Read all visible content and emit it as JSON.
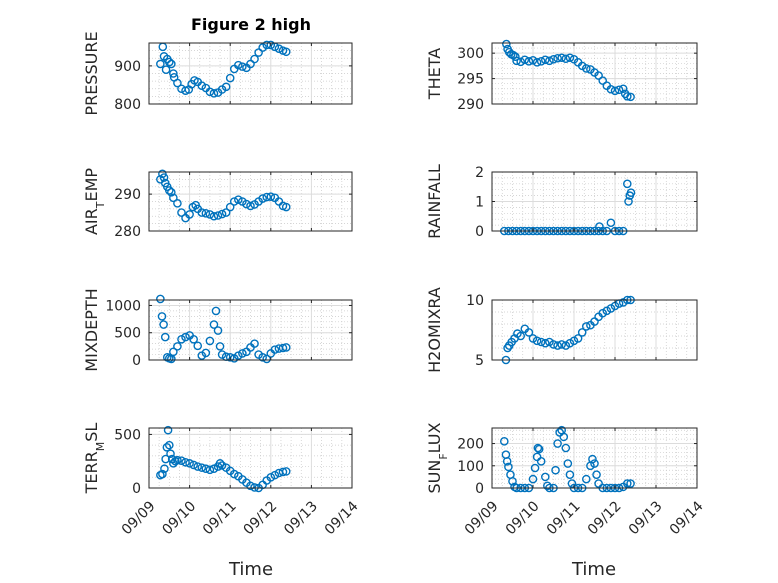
{
  "figure": {
    "title": "Figure 2 high",
    "x_label": "Time",
    "x_ticks": [
      "09/09",
      "09/10",
      "09/11",
      "09/12",
      "09/13",
      "09/14"
    ]
  },
  "chart_data": [
    {
      "type": "scatter",
      "ylabel": "PRESSURE",
      "ylabel_main": "PRESSURE",
      "ylabel_sub": "",
      "ylabel_tail": "",
      "ylim": [
        800,
        960
      ],
      "yticks": [
        800,
        900
      ],
      "xlim": [
        "09/09",
        "09/14"
      ],
      "marker": "o",
      "color": "#0072bd",
      "grid": true,
      "minor_grid": true,
      "points": [
        [
          0.28,
          905
        ],
        [
          0.34,
          950
        ],
        [
          0.37,
          925
        ],
        [
          0.42,
          890
        ],
        [
          0.45,
          918
        ],
        [
          0.5,
          910
        ],
        [
          0.55,
          905
        ],
        [
          0.6,
          880
        ],
        [
          0.62,
          870
        ],
        [
          0.7,
          855
        ],
        [
          0.8,
          840
        ],
        [
          0.9,
          835
        ],
        [
          0.98,
          838
        ],
        [
          1.05,
          852
        ],
        [
          1.12,
          862
        ],
        [
          1.2,
          858
        ],
        [
          1.3,
          848
        ],
        [
          1.4,
          842
        ],
        [
          1.5,
          832
        ],
        [
          1.6,
          828
        ],
        [
          1.7,
          830
        ],
        [
          1.8,
          838
        ],
        [
          1.9,
          845
        ],
        [
          2.0,
          868
        ],
        [
          2.1,
          892
        ],
        [
          2.2,
          902
        ],
        [
          2.3,
          898
        ],
        [
          2.4,
          895
        ],
        [
          2.5,
          905
        ],
        [
          2.6,
          918
        ],
        [
          2.7,
          935
        ],
        [
          2.8,
          948
        ],
        [
          2.9,
          955
        ],
        [
          3.0,
          955
        ],
        [
          3.1,
          950
        ],
        [
          3.2,
          945
        ],
        [
          3.3,
          940
        ],
        [
          3.38,
          937
        ]
      ]
    },
    {
      "type": "scatter",
      "ylabel": "THETA",
      "ylabel_main": "THETA",
      "ylabel_sub": "",
      "ylabel_tail": "",
      "ylim": [
        290,
        302
      ],
      "yticks": [
        290,
        295,
        300
      ],
      "xlim": [
        "09/09",
        "09/14"
      ],
      "marker": "o",
      "color": "#0072bd",
      "grid": true,
      "minor_grid": true,
      "points": [
        [
          0.35,
          301.8
        ],
        [
          0.38,
          300.8
        ],
        [
          0.42,
          300.2
        ],
        [
          0.47,
          299.8
        ],
        [
          0.52,
          299.6
        ],
        [
          0.57,
          299.3
        ],
        [
          0.6,
          298.5
        ],
        [
          0.7,
          298.3
        ],
        [
          0.8,
          298.7
        ],
        [
          0.9,
          298.4
        ],
        [
          1.0,
          298.6
        ],
        [
          1.1,
          298.2
        ],
        [
          1.2,
          298.4
        ],
        [
          1.3,
          298.7
        ],
        [
          1.4,
          298.5
        ],
        [
          1.5,
          298.8
        ],
        [
          1.6,
          299.0
        ],
        [
          1.7,
          299.1
        ],
        [
          1.8,
          298.9
        ],
        [
          1.9,
          299.1
        ],
        [
          2.0,
          298.8
        ],
        [
          2.1,
          298.2
        ],
        [
          2.2,
          297.5
        ],
        [
          2.3,
          297.0
        ],
        [
          2.4,
          296.8
        ],
        [
          2.5,
          296.2
        ],
        [
          2.6,
          295.6
        ],
        [
          2.7,
          294.6
        ],
        [
          2.8,
          293.6
        ],
        [
          2.9,
          292.9
        ],
        [
          3.0,
          292.6
        ],
        [
          3.1,
          292.8
        ],
        [
          3.2,
          293.0
        ],
        [
          3.25,
          292.0
        ],
        [
          3.3,
          291.5
        ],
        [
          3.38,
          291.4
        ]
      ]
    },
    {
      "type": "scatter",
      "ylabel": "AIR_TEMP",
      "ylabel_main": "AIR",
      "ylabel_sub": "T",
      "ylabel_tail": "EMP",
      "ylim": [
        280,
        296
      ],
      "yticks": [
        280,
        290
      ],
      "xlim": [
        "09/09",
        "09/14"
      ],
      "marker": "o",
      "color": "#0072bd",
      "grid": true,
      "minor_grid": true,
      "points": [
        [
          0.28,
          294.0
        ],
        [
          0.33,
          295.5
        ],
        [
          0.37,
          294.5
        ],
        [
          0.4,
          293.0
        ],
        [
          0.45,
          292.0
        ],
        [
          0.5,
          291.0
        ],
        [
          0.55,
          290.5
        ],
        [
          0.6,
          289.0
        ],
        [
          0.7,
          287.5
        ],
        [
          0.8,
          285.0
        ],
        [
          0.9,
          283.5
        ],
        [
          1.0,
          284.5
        ],
        [
          1.08,
          286.5
        ],
        [
          1.15,
          287.0
        ],
        [
          1.2,
          286.0
        ],
        [
          1.3,
          285.0
        ],
        [
          1.4,
          284.8
        ],
        [
          1.5,
          284.5
        ],
        [
          1.6,
          284.0
        ],
        [
          1.7,
          284.2
        ],
        [
          1.8,
          284.6
        ],
        [
          1.9,
          285.0
        ],
        [
          2.0,
          286.5
        ],
        [
          2.1,
          288.0
        ],
        [
          2.2,
          288.5
        ],
        [
          2.3,
          288.0
        ],
        [
          2.4,
          287.3
        ],
        [
          2.5,
          286.8
        ],
        [
          2.6,
          287.2
        ],
        [
          2.7,
          288.0
        ],
        [
          2.8,
          288.8
        ],
        [
          2.9,
          289.2
        ],
        [
          3.0,
          289.3
        ],
        [
          3.1,
          289.0
        ],
        [
          3.2,
          288.0
        ],
        [
          3.3,
          286.8
        ],
        [
          3.38,
          286.5
        ]
      ]
    },
    {
      "type": "scatter",
      "ylabel": "RAINFALL",
      "ylabel_main": "RAINFALL",
      "ylabel_sub": "",
      "ylabel_tail": "",
      "ylim": [
        0,
        2
      ],
      "yticks": [
        0,
        1,
        2
      ],
      "xlim": [
        "09/09",
        "09/14"
      ],
      "marker": "o",
      "color": "#0072bd",
      "grid": true,
      "minor_grid": true,
      "points": [
        [
          0.3,
          0
        ],
        [
          0.4,
          0
        ],
        [
          0.5,
          0
        ],
        [
          0.6,
          0
        ],
        [
          0.7,
          0
        ],
        [
          0.8,
          0
        ],
        [
          0.9,
          0
        ],
        [
          1.0,
          0
        ],
        [
          1.1,
          0
        ],
        [
          1.2,
          0
        ],
        [
          1.3,
          0
        ],
        [
          1.4,
          0
        ],
        [
          1.5,
          0
        ],
        [
          1.6,
          0
        ],
        [
          1.7,
          0
        ],
        [
          1.8,
          0
        ],
        [
          1.9,
          0
        ],
        [
          2.0,
          0
        ],
        [
          2.1,
          0
        ],
        [
          2.2,
          0
        ],
        [
          2.3,
          0
        ],
        [
          2.4,
          0
        ],
        [
          2.5,
          0
        ],
        [
          2.6,
          0
        ],
        [
          2.62,
          0.15
        ],
        [
          2.7,
          0
        ],
        [
          2.8,
          0
        ],
        [
          2.9,
          0.28
        ],
        [
          3.0,
          0
        ],
        [
          3.1,
          0
        ],
        [
          3.2,
          0
        ],
        [
          3.3,
          1.6
        ],
        [
          3.33,
          1.0
        ],
        [
          3.36,
          1.2
        ],
        [
          3.39,
          1.3
        ]
      ]
    },
    {
      "type": "scatter",
      "ylabel": "MIXDEPTH",
      "ylabel_main": "MIXDEPTH",
      "ylabel_sub": "",
      "ylabel_tail": "",
      "ylim": [
        0,
        1100
      ],
      "yticks": [
        0,
        500,
        1000
      ],
      "xlim": [
        "09/09",
        "09/14"
      ],
      "marker": "o",
      "color": "#0072bd",
      "grid": true,
      "minor_grid": true,
      "points": [
        [
          0.28,
          1120
        ],
        [
          0.32,
          800
        ],
        [
          0.36,
          650
        ],
        [
          0.4,
          420
        ],
        [
          0.45,
          50
        ],
        [
          0.5,
          30
        ],
        [
          0.55,
          20
        ],
        [
          0.6,
          150
        ],
        [
          0.7,
          250
        ],
        [
          0.8,
          380
        ],
        [
          0.9,
          420
        ],
        [
          1.0,
          450
        ],
        [
          1.1,
          380
        ],
        [
          1.2,
          260
        ],
        [
          1.3,
          80
        ],
        [
          1.4,
          130
        ],
        [
          1.5,
          350
        ],
        [
          1.6,
          650
        ],
        [
          1.65,
          900
        ],
        [
          1.7,
          540
        ],
        [
          1.75,
          250
        ],
        [
          1.8,
          100
        ],
        [
          1.9,
          60
        ],
        [
          2.0,
          50
        ],
        [
          2.1,
          30
        ],
        [
          2.2,
          80
        ],
        [
          2.3,
          120
        ],
        [
          2.4,
          150
        ],
        [
          2.5,
          230
        ],
        [
          2.6,
          300
        ],
        [
          2.7,
          100
        ],
        [
          2.8,
          50
        ],
        [
          2.9,
          20
        ],
        [
          3.0,
          120
        ],
        [
          3.1,
          190
        ],
        [
          3.2,
          210
        ],
        [
          3.3,
          220
        ],
        [
          3.38,
          230
        ]
      ]
    },
    {
      "type": "scatter",
      "ylabel": "H2OMIXRA",
      "ylabel_main": "H2OMIXRA",
      "ylabel_sub": "",
      "ylabel_tail": "",
      "ylim": [
        5,
        10
      ],
      "yticks": [
        5,
        10
      ],
      "xlim": [
        "09/09",
        "09/14"
      ],
      "marker": "o",
      "color": "#0072bd",
      "grid": true,
      "minor_grid": true,
      "points": [
        [
          0.34,
          5.0
        ],
        [
          0.38,
          6.0
        ],
        [
          0.42,
          6.2
        ],
        [
          0.48,
          6.5
        ],
        [
          0.55,
          6.8
        ],
        [
          0.62,
          7.2
        ],
        [
          0.7,
          7.0
        ],
        [
          0.8,
          7.6
        ],
        [
          0.9,
          7.3
        ],
        [
          1.0,
          6.8
        ],
        [
          1.1,
          6.6
        ],
        [
          1.2,
          6.5
        ],
        [
          1.3,
          6.4
        ],
        [
          1.4,
          6.5
        ],
        [
          1.5,
          6.3
        ],
        [
          1.6,
          6.2
        ],
        [
          1.7,
          6.3
        ],
        [
          1.8,
          6.2
        ],
        [
          1.9,
          6.4
        ],
        [
          2.0,
          6.6
        ],
        [
          2.1,
          6.8
        ],
        [
          2.2,
          7.3
        ],
        [
          2.3,
          7.8
        ],
        [
          2.4,
          7.9
        ],
        [
          2.5,
          8.2
        ],
        [
          2.6,
          8.6
        ],
        [
          2.7,
          8.9
        ],
        [
          2.8,
          9.1
        ],
        [
          2.9,
          9.3
        ],
        [
          3.0,
          9.5
        ],
        [
          3.1,
          9.7
        ],
        [
          3.2,
          9.8
        ],
        [
          3.3,
          10.0
        ],
        [
          3.38,
          10.0
        ]
      ]
    },
    {
      "type": "scatter",
      "ylabel": "TERR_MSL",
      "ylabel_main": "TERR",
      "ylabel_sub": "M",
      "ylabel_tail": "SL",
      "ylim": [
        0,
        560
      ],
      "yticks": [
        0,
        500
      ],
      "xlim": [
        "09/09",
        "09/14"
      ],
      "marker": "o",
      "color": "#0072bd",
      "grid": true,
      "minor_grid": true,
      "points": [
        [
          0.28,
          120
        ],
        [
          0.33,
          130
        ],
        [
          0.38,
          180
        ],
        [
          0.41,
          270
        ],
        [
          0.44,
          380
        ],
        [
          0.47,
          540
        ],
        [
          0.5,
          400
        ],
        [
          0.53,
          320
        ],
        [
          0.57,
          270
        ],
        [
          0.6,
          230
        ],
        [
          0.65,
          250
        ],
        [
          0.7,
          260
        ],
        [
          0.8,
          255
        ],
        [
          0.9,
          240
        ],
        [
          1.0,
          230
        ],
        [
          1.1,
          215
        ],
        [
          1.2,
          200
        ],
        [
          1.3,
          190
        ],
        [
          1.4,
          180
        ],
        [
          1.5,
          170
        ],
        [
          1.6,
          180
        ],
        [
          1.7,
          200
        ],
        [
          1.75,
          230
        ],
        [
          1.8,
          210
        ],
        [
          1.9,
          190
        ],
        [
          2.0,
          160
        ],
        [
          2.1,
          130
        ],
        [
          2.2,
          110
        ],
        [
          2.3,
          80
        ],
        [
          2.4,
          50
        ],
        [
          2.5,
          20
        ],
        [
          2.6,
          5
        ],
        [
          2.7,
          0
        ],
        [
          2.8,
          30
        ],
        [
          2.9,
          70
        ],
        [
          3.0,
          100
        ],
        [
          3.1,
          120
        ],
        [
          3.2,
          140
        ],
        [
          3.3,
          150
        ],
        [
          3.38,
          155
        ]
      ]
    },
    {
      "type": "scatter",
      "ylabel": "SUN_FLUX",
      "ylabel_main": "SUN",
      "ylabel_sub": "F",
      "ylabel_tail": "LUX",
      "ylim": [
        0,
        270
      ],
      "yticks": [
        0,
        100,
        200
      ],
      "xlim": [
        "09/09",
        "09/14"
      ],
      "marker": "o",
      "color": "#0072bd",
      "grid": true,
      "minor_grid": true,
      "points": [
        [
          0.3,
          210
        ],
        [
          0.34,
          150
        ],
        [
          0.37,
          120
        ],
        [
          0.4,
          95
        ],
        [
          0.45,
          60
        ],
        [
          0.5,
          30
        ],
        [
          0.55,
          5
        ],
        [
          0.6,
          0
        ],
        [
          0.7,
          0
        ],
        [
          0.8,
          0
        ],
        [
          0.9,
          0
        ],
        [
          1.0,
          40
        ],
        [
          1.05,
          90
        ],
        [
          1.1,
          140
        ],
        [
          1.12,
          180
        ],
        [
          1.15,
          175
        ],
        [
          1.2,
          120
        ],
        [
          1.3,
          50
        ],
        [
          1.35,
          10
        ],
        [
          1.4,
          0
        ],
        [
          1.5,
          0
        ],
        [
          1.55,
          80
        ],
        [
          1.6,
          200
        ],
        [
          1.65,
          250
        ],
        [
          1.7,
          260
        ],
        [
          1.75,
          230
        ],
        [
          1.8,
          180
        ],
        [
          1.85,
          110
        ],
        [
          1.9,
          60
        ],
        [
          1.95,
          20
        ],
        [
          2.0,
          0
        ],
        [
          2.1,
          0
        ],
        [
          2.2,
          0
        ],
        [
          2.3,
          40
        ],
        [
          2.4,
          100
        ],
        [
          2.45,
          130
        ],
        [
          2.5,
          110
        ],
        [
          2.55,
          60
        ],
        [
          2.6,
          20
        ],
        [
          2.7,
          0
        ],
        [
          2.8,
          0
        ],
        [
          2.9,
          0
        ],
        [
          3.0,
          0
        ],
        [
          3.1,
          0
        ],
        [
          3.2,
          5
        ],
        [
          3.3,
          20
        ],
        [
          3.38,
          20
        ]
      ]
    }
  ]
}
